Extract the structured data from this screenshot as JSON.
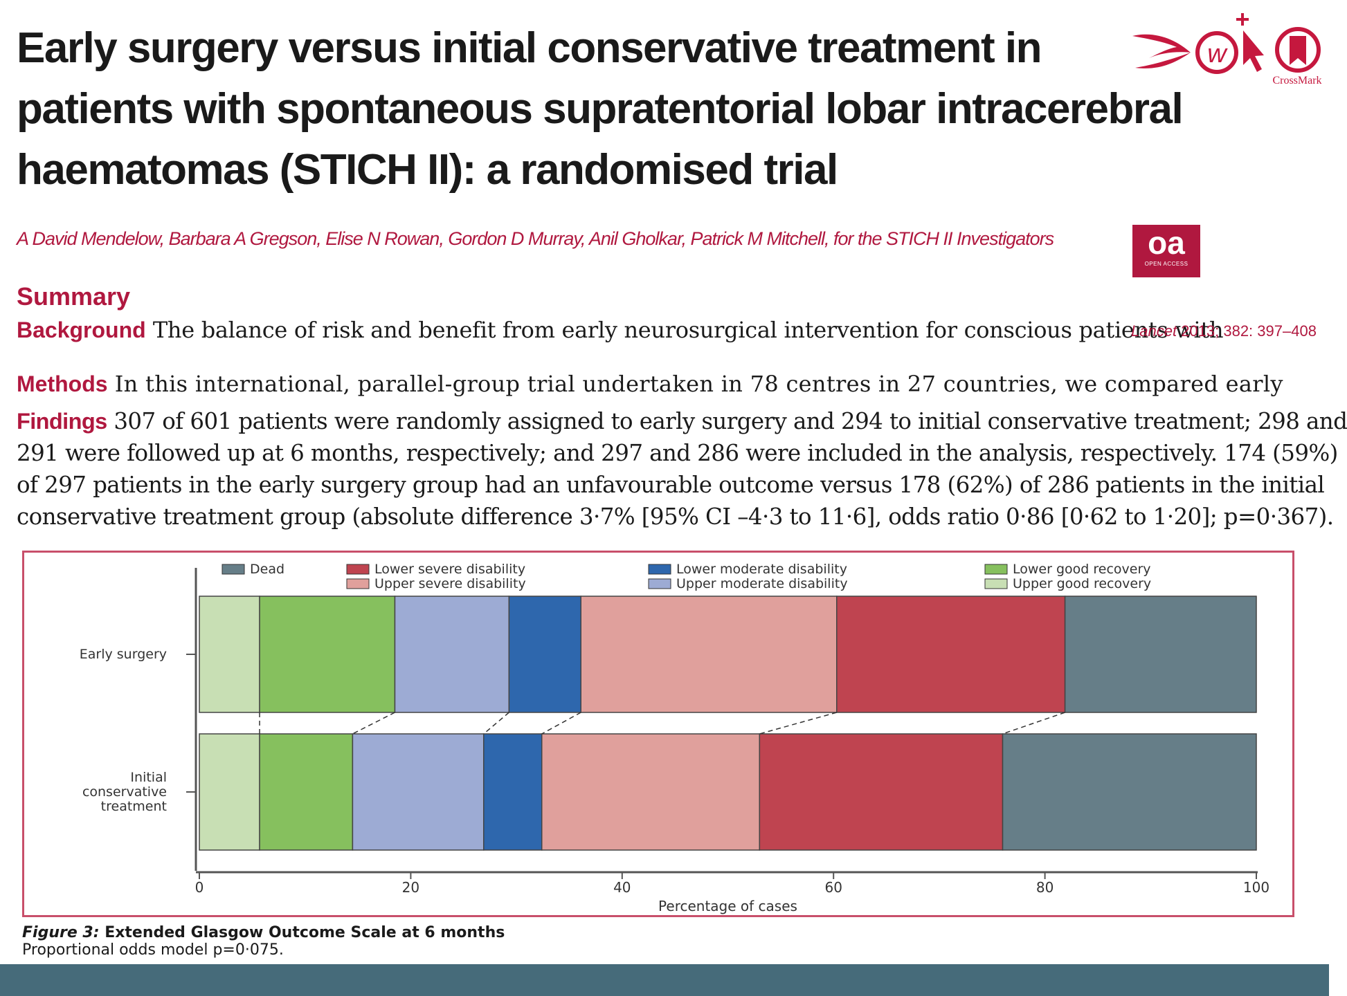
{
  "title_lines": [
    "Early surgery versus initial conservative treatment in",
    "patients with spontaneous supratentorial lobar intracerebral",
    "haematomas (STICH II): a randomised trial"
  ],
  "authors": "A David Mendelow, Barbara A Gregson, Elise N Rowan, Gordon D Murray, Anil Gholkar, Patrick M Mitchell, for the STICH II Investigators",
  "crossmark_label": "CrossMark",
  "oa_badge": {
    "big": "oa",
    "small": "OPEN ACCESS"
  },
  "summary_heading": "Summary",
  "background": {
    "label": "Background",
    "text": "The balance of risk and benefit from early neurosurgical intervention for conscious patients with"
  },
  "citation": {
    "journal": "Lancet",
    "details": "2013; 382: 397–408"
  },
  "methods": {
    "label": "Methods",
    "text": "In this international, parallel-group trial undertaken in 78 centres in 27 countries, we compared early"
  },
  "findings": {
    "label": "Findings",
    "lines": [
      "307 of 601 patients were randomly assigned to early surgery and 294 to initial conservative treatment; 298 and",
      "291 were followed up at 6 months, respectively; and 297 and 286 were included in the analysis, respectively. 174 (59%)",
      "of 297 patients in the early surgery group had an unfavourable outcome versus 178 (62%) of 286 patients in the initial",
      "conservative treatment group (absolute difference 3·7% [95% CI –4·3 to 11·6], odds ratio 0·86 [0·62 to 1·20]; p=0·367)."
    ]
  },
  "chart_data": {
    "type": "bar",
    "subtype": "stacked-horizontal-100",
    "title": "Figure 3: Extended Glasgow Outcome Scale at 6 months",
    "xlabel": "Percentage of cases",
    "ylabel": "",
    "xlim": [
      0,
      100
    ],
    "xticks": [
      0,
      20,
      40,
      60,
      80,
      100
    ],
    "legend_position": "top",
    "categories": [
      "Early surgery",
      "Initial conservative treatment"
    ],
    "category_label_lines": [
      [
        "Early surgery"
      ],
      [
        "Initial",
        "conservative",
        "treatment"
      ]
    ],
    "legend_order": [
      "Dead",
      "Lower severe disability",
      "Lower moderate disability",
      "Lower good recovery",
      "Upper severe disability",
      "Upper moderate disability",
      "Upper good recovery"
    ],
    "series": [
      {
        "name": "Upper good recovery",
        "color": "#c8dfb4",
        "values": [
          5.7,
          5.7
        ]
      },
      {
        "name": "Lower good recovery",
        "color": "#86c05e",
        "values": [
          12.8,
          8.8
        ]
      },
      {
        "name": "Upper moderate disability",
        "color": "#9dabd4",
        "values": [
          10.8,
          12.4
        ]
      },
      {
        "name": "Lower moderate disability",
        "color": "#2e67ad",
        "values": [
          6.8,
          5.5
        ]
      },
      {
        "name": "Upper severe disability",
        "color": "#e0a09c",
        "values": [
          24.2,
          20.6
        ]
      },
      {
        "name": "Lower severe disability",
        "color": "#bf4450",
        "values": [
          21.6,
          23.0
        ]
      },
      {
        "name": "Dead",
        "color": "#667e88",
        "values": [
          18.1,
          24.0
        ]
      }
    ]
  },
  "figure_caption": {
    "label": "Figure 3:",
    "title": "Extended Glasgow Outcome Scale at 6 months",
    "note": "Proportional odds model p=0·075."
  }
}
